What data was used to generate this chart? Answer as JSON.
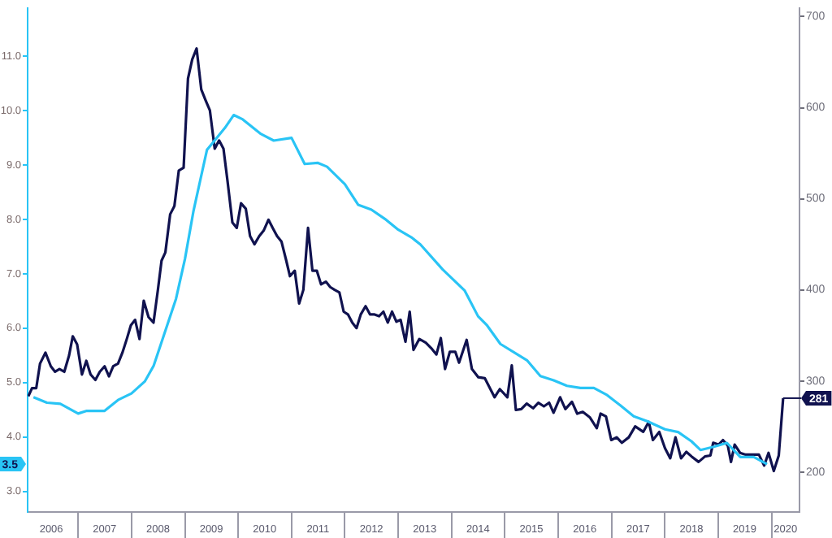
{
  "chart_data": {
    "type": "line",
    "xlim": [
      "2006-01-20",
      "2020-07-10"
    ],
    "xticks": [
      {
        "value": "2006-07-01",
        "label": "2006"
      },
      {
        "value": "2007-01-01",
        "label": null
      },
      {
        "value": "2007-07-01",
        "label": "2007"
      },
      {
        "value": "2008-01-01",
        "label": null
      },
      {
        "value": "2008-07-01",
        "label": "2008"
      },
      {
        "value": "2009-01-01",
        "label": null
      },
      {
        "value": "2009-07-01",
        "label": "2009"
      },
      {
        "value": "2010-01-01",
        "label": null
      },
      {
        "value": "2010-07-01",
        "label": "2010"
      },
      {
        "value": "2011-01-01",
        "label": null
      },
      {
        "value": "2011-07-01",
        "label": "2011"
      },
      {
        "value": "2012-01-01",
        "label": null
      },
      {
        "value": "2012-07-01",
        "label": "2012"
      },
      {
        "value": "2013-01-01",
        "label": null
      },
      {
        "value": "2013-07-01",
        "label": "2013"
      },
      {
        "value": "2014-01-01",
        "label": null
      },
      {
        "value": "2014-07-01",
        "label": "2014"
      },
      {
        "value": "2015-01-01",
        "label": null
      },
      {
        "value": "2015-07-01",
        "label": "2015"
      },
      {
        "value": "2016-01-01",
        "label": null
      },
      {
        "value": "2016-07-01",
        "label": "2016"
      },
      {
        "value": "2017-01-01",
        "label": null
      },
      {
        "value": "2017-07-01",
        "label": "2017"
      },
      {
        "value": "2018-01-01",
        "label": null
      },
      {
        "value": "2018-07-01",
        "label": "2018"
      },
      {
        "value": "2019-01-01",
        "label": null
      },
      {
        "value": "2019-07-01",
        "label": "2019"
      },
      {
        "value": "2020-01-01",
        "label": null
      },
      {
        "value": "2020-04-05",
        "label": "2020"
      }
    ],
    "ylim": [
      2.62,
      11.88
    ],
    "yticks": [
      {
        "value": 3,
        "label": "3.0"
      },
      {
        "value": 4,
        "label": "4.0"
      },
      {
        "value": 5,
        "label": "5.0"
      },
      {
        "value": 6,
        "label": "6.0"
      },
      {
        "value": 7,
        "label": "7.0"
      },
      {
        "value": 8,
        "label": "8.0"
      },
      {
        "value": 9,
        "label": "9.0"
      },
      {
        "value": 10,
        "label": "10.0"
      },
      {
        "value": 11,
        "label": "11.0"
      }
    ],
    "y2lim": [
      156,
      709
    ],
    "y2ticks": [
      200,
      300,
      400,
      500,
      600,
      700
    ],
    "annotations": [
      "3.5",
      "281"
    ],
    "series": [
      {
        "color": "#29c4f5",
        "axis": "y",
        "x": [
          "2006-03",
          "2006-06",
          "2006-09",
          "2007-01",
          "2007-03",
          "2007-07",
          "2007-10",
          "2008-01",
          "2008-04",
          "2008-06",
          "2008-08",
          "2008-11",
          "2009-01",
          "2009-03",
          "2009-06",
          "2009-10",
          "2009-12",
          "2010-02",
          "2010-06",
          "2010-09",
          "2011-01",
          "2011-04",
          "2011-07",
          "2011-09",
          "2012-01",
          "2012-04",
          "2012-07",
          "2012-10",
          "2013-01",
          "2013-04",
          "2013-06",
          "2013-11",
          "2014-04",
          "2014-07",
          "2014-09",
          "2014-12",
          "2015-04",
          "2015-06",
          "2015-09",
          "2015-12",
          "2016-03",
          "2016-06",
          "2016-09",
          "2016-12",
          "2017-03",
          "2017-06",
          "2017-09",
          "2018-01",
          "2018-04",
          "2018-07",
          "2018-09",
          "2018-12",
          "2019-03",
          "2019-06",
          "2019-09",
          "2019-12"
        ],
        "values": [
          4.73,
          4.63,
          4.61,
          4.43,
          4.48,
          4.48,
          4.68,
          4.8,
          5.02,
          5.31,
          5.8,
          6.54,
          7.27,
          8.16,
          9.28,
          9.68,
          9.92,
          9.84,
          9.58,
          9.45,
          9.5,
          9.02,
          9.04,
          8.97,
          8.65,
          8.27,
          8.18,
          8.01,
          7.81,
          7.67,
          7.54,
          7.08,
          6.69,
          6.22,
          6.05,
          5.71,
          5.51,
          5.41,
          5.12,
          5.04,
          4.94,
          4.9,
          4.9,
          4.77,
          4.58,
          4.38,
          4.29,
          4.14,
          4.09,
          3.92,
          3.76,
          3.82,
          3.89,
          3.63,
          3.63,
          3.5
        ]
      },
      {
        "color": "#10124f",
        "axis": "y2",
        "x": [
          "2006-01-25",
          "2006-02-19",
          "2006-03-20",
          "2006-04-15",
          "2006-05-22",
          "2006-06-28",
          "2006-07-27",
          "2006-08-26",
          "2006-09-28",
          "2006-10-31",
          "2006-11-25",
          "2006-12-25",
          "2007-01-27",
          "2007-02-26",
          "2007-03-27",
          "2007-04-29",
          "2007-05-29",
          "2007-07-01",
          "2007-07-31",
          "2007-08-29",
          "2007-10-01",
          "2007-10-31",
          "2007-11-30",
          "2007-12-28",
          "2008-01-26",
          "2008-02-25",
          "2008-03-25",
          "2008-04-27",
          "2008-05-31",
          "2008-06-30",
          "2008-07-25",
          "2008-08-20",
          "2008-09-22",
          "2008-10-21",
          "2008-11-20",
          "2008-12-23",
          "2009-01-22",
          "2009-02-20",
          "2009-03-22",
          "2009-04-23",
          "2009-05-23",
          "2009-06-21",
          "2009-07-24",
          "2009-08-23",
          "2009-09-22",
          "2009-10-20",
          "2009-11-22",
          "2009-12-22",
          "2010-01-20",
          "2010-02-22",
          "2010-03-23",
          "2010-04-22",
          "2010-05-25",
          "2010-06-24",
          "2010-07-27",
          "2010-08-25",
          "2010-09-24",
          "2010-10-24",
          "2010-11-26",
          "2010-12-21",
          "2011-01-23",
          "2011-02-22",
          "2011-03-23",
          "2011-04-24",
          "2011-05-24",
          "2011-06-23",
          "2011-07-22",
          "2011-08-24",
          "2011-09-23",
          "2011-10-23",
          "2011-11-25",
          "2011-12-24",
          "2012-01-22",
          "2012-02-21",
          "2012-03-21",
          "2012-04-19",
          "2012-05-22",
          "2012-06-21",
          "2012-07-19",
          "2012-08-22",
          "2012-09-21",
          "2012-10-21",
          "2012-11-19",
          "2012-12-19",
          "2013-01-17",
          "2013-02-19",
          "2013-03-20",
          "2013-04-15",
          "2013-05-25",
          "2013-07-08",
          "2013-08-14",
          "2013-09-19",
          "2013-10-19",
          "2013-11-17",
          "2013-12-20",
          "2014-01-26",
          "2014-02-21",
          "2014-04-14",
          "2014-05-20",
          "2014-07-03",
          "2014-08-16",
          "2014-10-22",
          "2014-11-27",
          "2015-01-18",
          "2015-02-17",
          "2015-03-17",
          "2015-04-23",
          "2015-05-30",
          "2015-07-13",
          "2015-08-18",
          "2015-09-25",
          "2015-10-31",
          "2015-11-30",
          "2016-01-14",
          "2016-02-19",
          "2016-04-04",
          "2016-05-10",
          "2016-06-17",
          "2016-08-04",
          "2016-09-21",
          "2016-10-17",
          "2016-11-23",
          "2016-12-29",
          "2017-02-04",
          "2017-03-12",
          "2017-04-28",
          "2017-06-11",
          "2017-08-05",
          "2017-09-12",
          "2017-10-10",
          "2017-11-23",
          "2018-01-01",
          "2018-02-06",
          "2018-03-14",
          "2018-04-21",
          "2018-05-27",
          "2018-07-02",
          "2018-08-19",
          "2018-10-02",
          "2018-11-08",
          "2018-11-27",
          "2019-01-03",
          "2019-02-02",
          "2019-03-07",
          "2019-03-29",
          "2019-04-23",
          "2019-05-30",
          "2019-07-07",
          "2019-08-12",
          "2019-10-06",
          "2019-11-11",
          "2019-12-11",
          "2020-01-16",
          "2020-02-19",
          "2020-03-20"
        ],
        "values": [
          283,
          292,
          292,
          319,
          331,
          316,
          310,
          313,
          310,
          328,
          349,
          340,
          307,
          322,
          307,
          301,
          310,
          316,
          305,
          316,
          319,
          331,
          346,
          361,
          367,
          346,
          388,
          370,
          364,
          400,
          432,
          441,
          483,
          492,
          531,
          534,
          632,
          653,
          665,
          620,
          608,
          597,
          555,
          564,
          555,
          519,
          474,
          468,
          495,
          489,
          459,
          450,
          459,
          465,
          477,
          468,
          459,
          453,
          432,
          415,
          421,
          385,
          400,
          468,
          421,
          421,
          406,
          409,
          403,
          400,
          397,
          376,
          373,
          364,
          358,
          373,
          382,
          373,
          373,
          371,
          376,
          364,
          376,
          365,
          367,
          343,
          376,
          334,
          346,
          342,
          336,
          329,
          347,
          313,
          332,
          332,
          320,
          345,
          313,
          304,
          303,
          282,
          291,
          282,
          317,
          268,
          269,
          275,
          270,
          276,
          272,
          276,
          265,
          282,
          269,
          277,
          264,
          266,
          260,
          248,
          264,
          261,
          235,
          238,
          232,
          238,
          250,
          244,
          255,
          235,
          244,
          226,
          215,
          238,
          215,
          222,
          217,
          211,
          217,
          218,
          232,
          230,
          235,
          229,
          211,
          230,
          221,
          219,
          219,
          219,
          207,
          221,
          201,
          218,
          281
        ]
      }
    ]
  }
}
